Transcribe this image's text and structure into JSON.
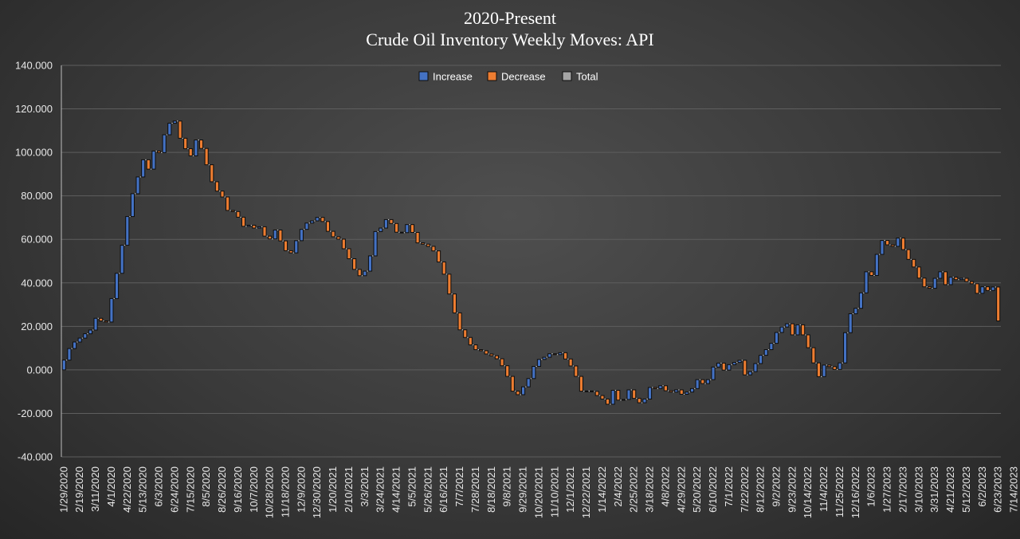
{
  "chart_data": {
    "type": "waterfall",
    "title_line1": "2020-Present",
    "title_line2": "Crude Oil Inventory Weekly Moves:  API",
    "ylim": [
      -40,
      140
    ],
    "y_ticks": [
      "140.000",
      "120.000",
      "100.000",
      "80.000",
      "60.000",
      "40.000",
      "20.000",
      "0.000",
      "-20.000",
      "-40.000"
    ],
    "x_tick_labels": [
      "1/29/2020",
      "2/19/2020",
      "3/11/2020",
      "4/1/2020",
      "4/22/2020",
      "5/13/2020",
      "6/3/2020",
      "6/24/2020",
      "7/15/2020",
      "8/5/2020",
      "8/26/2020",
      "9/16/2020",
      "10/7/2020",
      "10/28/2020",
      "11/18/2020",
      "12/9/2020",
      "12/30/2020",
      "1/20/2021",
      "2/10/2021",
      "3/3/2021",
      "3/24/2021",
      "4/14/2021",
      "5/5/2021",
      "5/26/2021",
      "6/16/2021",
      "7/7/2021",
      "7/28/2021",
      "8/18/2021",
      "9/8/2021",
      "9/29/2021",
      "10/20/2021",
      "11/10/2021",
      "12/1/2021",
      "12/22/2021",
      "1/14/2022",
      "2/4/2022",
      "2/25/2022",
      "3/18/2022",
      "4/8/2022",
      "4/29/2022",
      "5/20/2022",
      "6/10/2022",
      "7/1/2022",
      "7/22/2022",
      "8/12/2022",
      "9/2/2022",
      "9/23/2022",
      "10/14/2022",
      "11/4/2022",
      "11/25/2022",
      "12/16/2022",
      "1/6/2023",
      "1/27/2023",
      "2/17/2023",
      "3/10/2023",
      "3/31/2023",
      "4/21/2023",
      "5/12/2023",
      "6/2/2023",
      "6/23/2023",
      "7/14/2023"
    ],
    "legend": [
      {
        "name": "Increase",
        "color": "#4472c4"
      },
      {
        "name": "Decrease",
        "color": "#ed7d31"
      },
      {
        "name": "Total",
        "color": "#a5a5a5"
      }
    ],
    "cumulative_levels": [
      0,
      4.5,
      9.8,
      12.8,
      14.6,
      16.6,
      18.3,
      23.7,
      22.5,
      22,
      32.8,
      44.4,
      57.3,
      70.5,
      81,
      88.7,
      96.6,
      92.3,
      100.6,
      99.9,
      108.1,
      113.4,
      114.4,
      106.5,
      101.7,
      98.4,
      105.7,
      101.8,
      94.3,
      86.5,
      82.2,
      79.5,
      73.3,
      72.8,
      70.2,
      66,
      66.5,
      65.2,
      65.8,
      61.5,
      60.2,
      64.3,
      59.3,
      54.8,
      53.8,
      59.4,
      64.6,
      67.5,
      68.5,
      70.1,
      68.2,
      63.7,
      61.2,
      60.1,
      55.7,
      51.1,
      46.2,
      43.3,
      45.4,
      52.4,
      63.6,
      65.2,
      69.1,
      67.3,
      63.3,
      63.1,
      66.8,
      63.2,
      58.4,
      57.8,
      56.8,
      54.7,
      49.6,
      44,
      34.9,
      26.2,
      18.4,
      14.9,
      11.5,
      9.3,
      8.8,
      7.3,
      6.5,
      5.1,
      1.9,
      -3,
      -9.8,
      -11.4,
      -7.8,
      -4,
      1.6,
      4.8,
      5.8,
      7.4,
      7,
      7.9,
      5,
      1.8,
      -3,
      -9.8,
      -9.7,
      -9.9,
      -11.8,
      -13.4,
      -15.8,
      -9.4,
      -13.9,
      -13.6,
      -9.2,
      -13.1,
      -15.1,
      -13.4,
      -8.1,
      -8.6,
      -7.3,
      -9.6,
      -10.2,
      -9.2,
      -11.2,
      -10.2,
      -8.6,
      -4.5,
      -6.3,
      -4.5,
      1.3,
      3.1,
      -0.1,
      2.4,
      3.4,
      4.4,
      -2.3,
      -0.8,
      2.9,
      6.7,
      9.3,
      12.2,
      17.2,
      19.7,
      21.2,
      16.1,
      20.7,
      16.1,
      10.2,
      3.2,
      -3.1,
      2.2,
      1.5,
      0.2,
      3.2,
      17.1,
      25.8,
      28.3,
      35.4,
      45.1,
      43.4,
      53.1,
      59.5,
      57.5,
      56.8,
      60.6,
      55.3,
      50.8,
      47.3,
      42.2,
      38.2,
      37.5,
      42.1,
      45.1,
      39.2,
      42.6,
      41.5,
      42.1,
      40.6,
      39.6,
      35.2,
      38.2,
      36.5,
      38.1,
      22.5
    ]
  }
}
